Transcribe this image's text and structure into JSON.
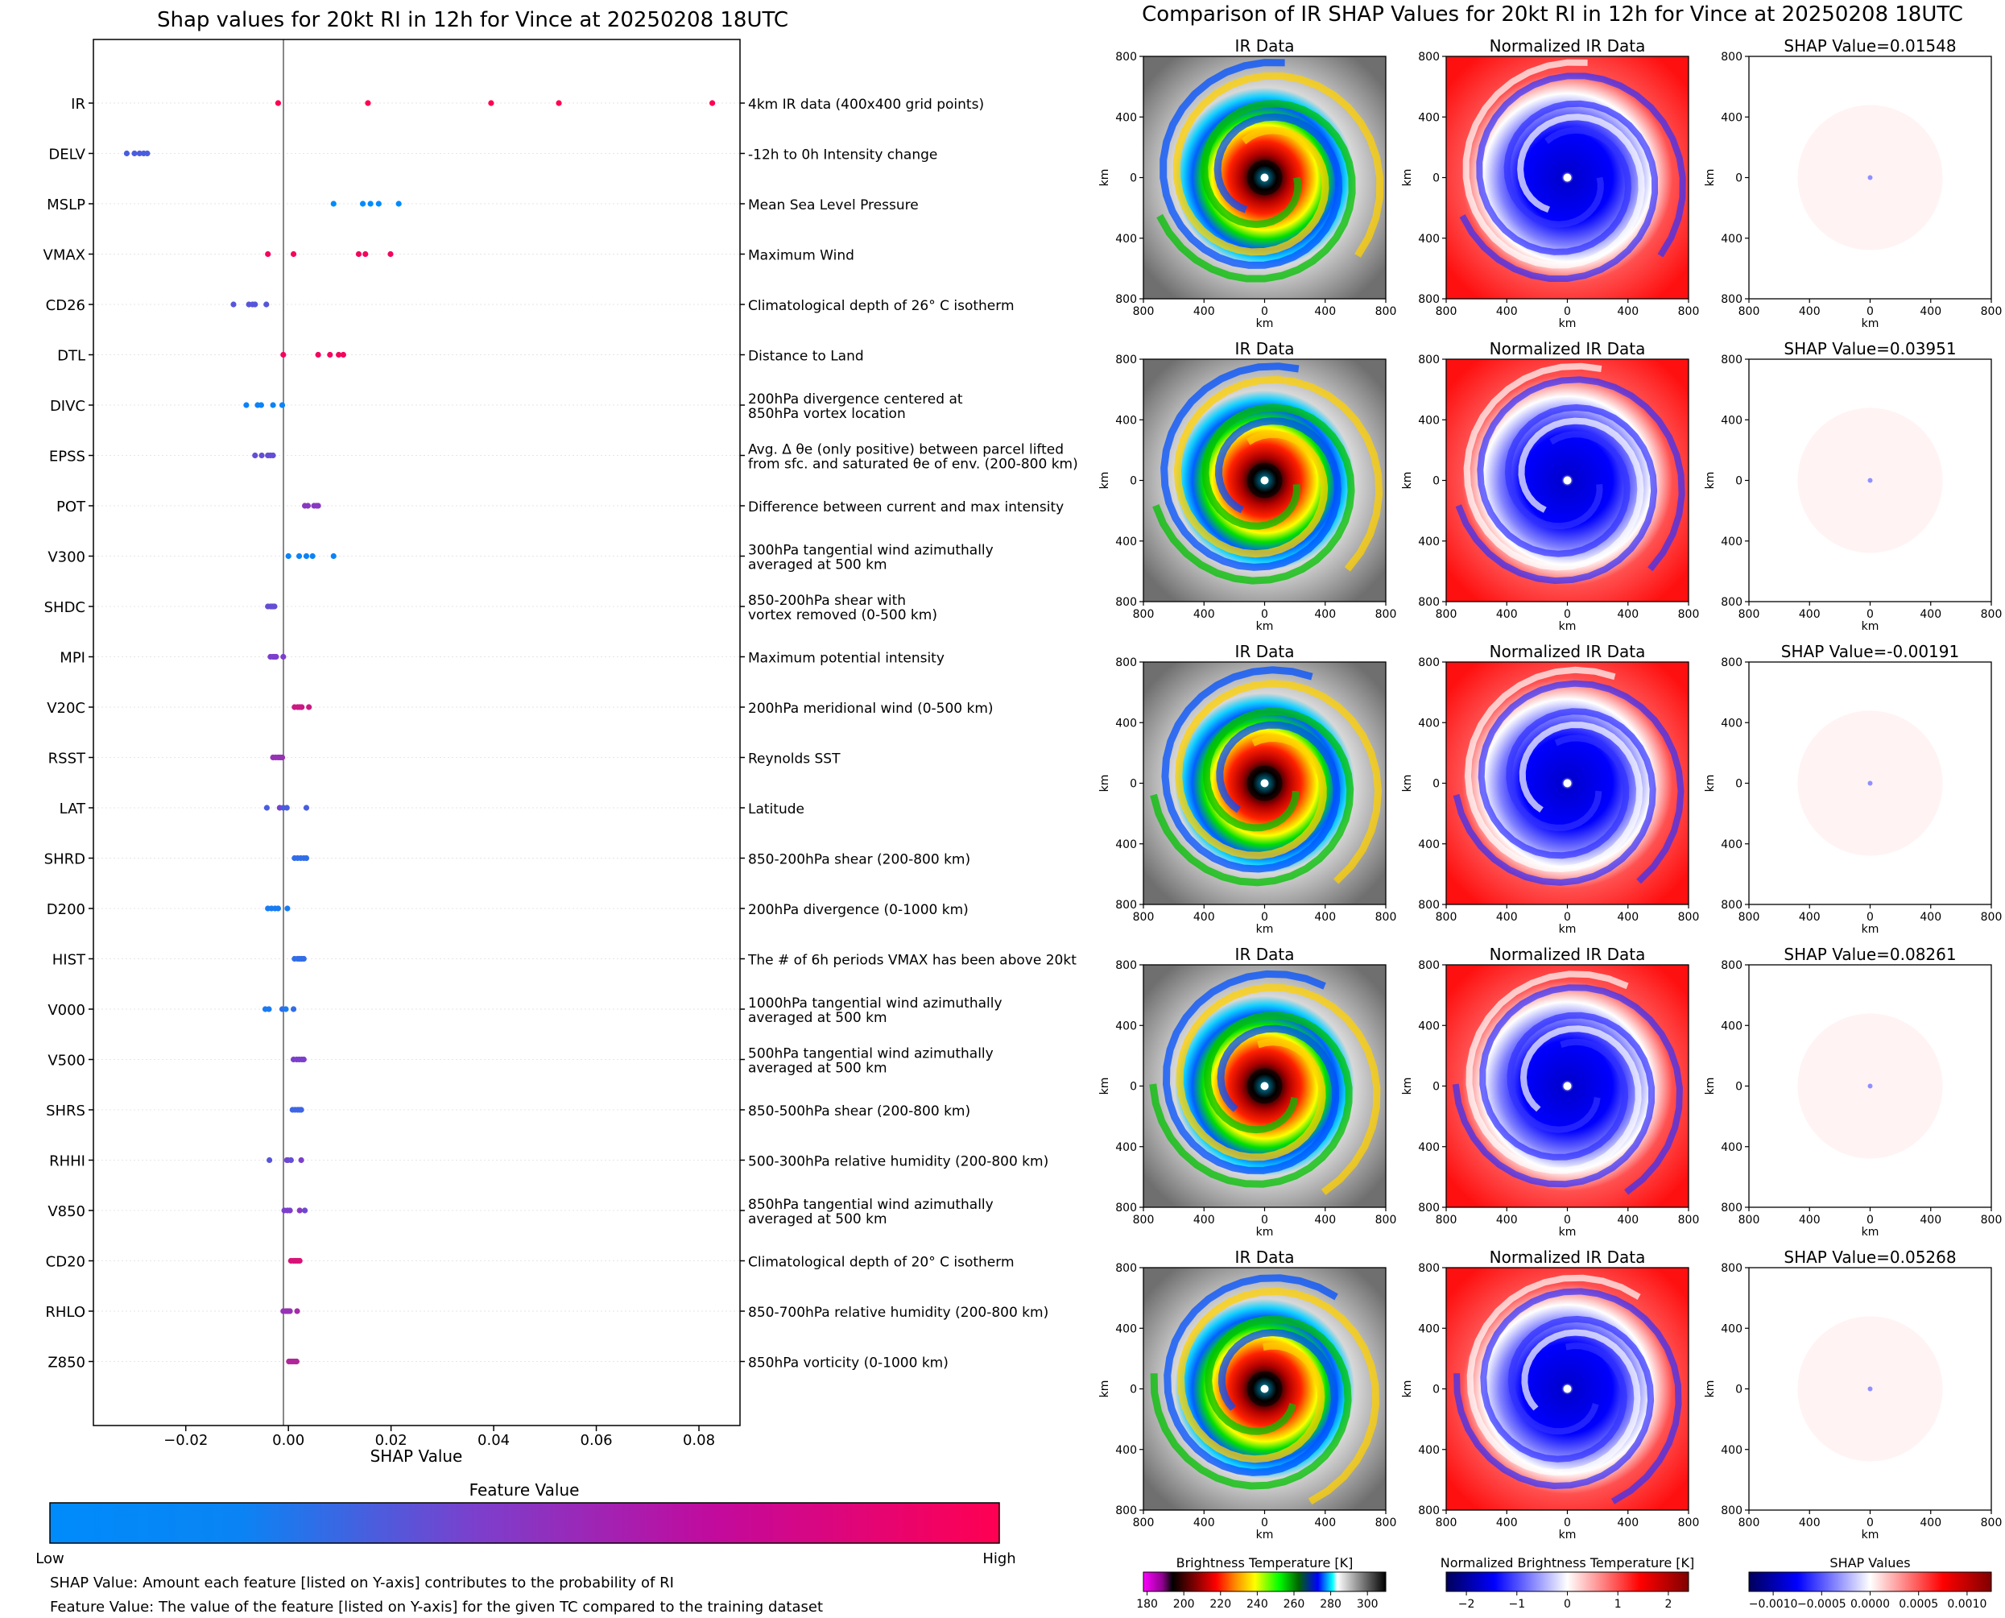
{
  "left_title": "Shap values for 20kt RI in 12h for Vince at 20250208 18UTC",
  "right_title": "Comparison of IR SHAP Values for 20kt RI in 12h for Vince at 20250208 18UTC",
  "colors": {
    "low": "#008bfb",
    "mid": "#7c3fcc",
    "high": "#ff0052"
  },
  "chart_data": [
    {
      "type": "scatter",
      "xlabel": "SHAP Value",
      "xlim": [
        -0.038,
        0.088
      ],
      "xticks": [
        -0.02,
        0.0,
        0.02,
        0.04,
        0.06,
        0.08
      ],
      "xtick_labels": [
        "−0.02",
        "0.00",
        "0.02",
        "0.04",
        "0.06",
        "0.08"
      ],
      "features": [
        {
          "name": "IR",
          "desc": [
            "4km IR data (400x400 grid points)"
          ],
          "points": [
            [
              -0.002,
              1.0
            ],
            [
              0.0155,
              1.0
            ],
            [
              0.0395,
              1.0
            ],
            [
              0.0527,
              1.0
            ],
            [
              0.0826,
              1.0
            ]
          ]
        },
        {
          "name": "DELV",
          "desc": [
            "-12h to 0h Intensity change"
          ],
          "points": [
            [
              -0.0315,
              0.3
            ],
            [
              -0.03,
              0.3
            ],
            [
              -0.029,
              0.3
            ],
            [
              -0.0282,
              0.3
            ],
            [
              -0.0275,
              0.3
            ]
          ]
        },
        {
          "name": "MSLP",
          "desc": [
            "Mean Sea Level Pressure"
          ],
          "points": [
            [
              0.0088,
              0.0
            ],
            [
              0.0145,
              0.0
            ],
            [
              0.016,
              0.0
            ],
            [
              0.0176,
              0.0
            ],
            [
              0.0215,
              0.0
            ]
          ]
        },
        {
          "name": "VMAX",
          "desc": [
            "Maximum Wind"
          ],
          "points": [
            [
              -0.004,
              0.95
            ],
            [
              0.001,
              0.95
            ],
            [
              0.0137,
              0.95
            ],
            [
              0.015,
              0.95
            ],
            [
              0.0199,
              0.95
            ]
          ]
        },
        {
          "name": "CD26",
          "desc": [
            "Climatological depth of 26° C isotherm"
          ],
          "points": [
            [
              -0.0107,
              0.35
            ],
            [
              -0.0077,
              0.35
            ],
            [
              -0.007,
              0.35
            ],
            [
              -0.0065,
              0.35
            ],
            [
              -0.0043,
              0.35
            ]
          ]
        },
        {
          "name": "DTL",
          "desc": [
            "Distance to Land"
          ],
          "points": [
            [
              -0.001,
              0.95
            ],
            [
              0.0058,
              0.95
            ],
            [
              0.0081,
              0.95
            ],
            [
              0.0098,
              0.95
            ],
            [
              0.0107,
              0.95
            ]
          ]
        },
        {
          "name": "DIVC",
          "desc": [
            "200hPa divergence centered at",
            "850hPa vortex location"
          ],
          "points": [
            [
              -0.0082,
              0.05
            ],
            [
              -0.006,
              0.05
            ],
            [
              -0.0053,
              0.05
            ],
            [
              -0.003,
              0.05
            ],
            [
              -0.0012,
              0.05
            ]
          ]
        },
        {
          "name": "EPSS",
          "desc": [
            "Avg. Δ θe (only positive) between parcel lifted",
            "from sfc. and saturated θe of env. (200-800 km)"
          ],
          "points": [
            [
              -0.0065,
              0.4
            ],
            [
              -0.0052,
              0.4
            ],
            [
              -0.004,
              0.4
            ],
            [
              -0.0035,
              0.4
            ],
            [
              -0.003,
              0.4
            ]
          ]
        },
        {
          "name": "POT",
          "desc": [
            "Difference between current and max intensity"
          ],
          "points": [
            [
              0.0032,
              0.55
            ],
            [
              0.0038,
              0.55
            ],
            [
              0.005,
              0.55
            ],
            [
              0.0055,
              0.55
            ],
            [
              0.0058,
              0.55
            ]
          ]
        },
        {
          "name": "V300",
          "desc": [
            "300hPa tangential wind azimuthally",
            "averaged at 500 km"
          ],
          "points": [
            [
              0.0,
              0.05
            ],
            [
              0.0021,
              0.05
            ],
            [
              0.0035,
              0.05
            ],
            [
              0.0047,
              0.05
            ],
            [
              0.0088,
              0.05
            ]
          ]
        },
        {
          "name": "SHDC",
          "desc": [
            "850-200hPa shear with",
            "vortex removed (0-500 km)"
          ],
          "points": [
            [
              -0.004,
              0.4
            ],
            [
              -0.0035,
              0.4
            ],
            [
              -0.0032,
              0.4
            ],
            [
              -0.003,
              0.4
            ],
            [
              -0.0027,
              0.4
            ]
          ]
        },
        {
          "name": "MPI",
          "desc": [
            "Maximum potential intensity"
          ],
          "points": [
            [
              -0.0035,
              0.5
            ],
            [
              -0.003,
              0.5
            ],
            [
              -0.0027,
              0.5
            ],
            [
              -0.0024,
              0.5
            ],
            [
              -0.001,
              0.5
            ]
          ]
        },
        {
          "name": "V20C",
          "desc": [
            "200hPa meridional wind (0-500 km)"
          ],
          "points": [
            [
              0.0012,
              0.8
            ],
            [
              0.0018,
              0.8
            ],
            [
              0.0022,
              0.8
            ],
            [
              0.0026,
              0.8
            ],
            [
              0.004,
              0.8
            ]
          ]
        },
        {
          "name": "RSST",
          "desc": [
            "Reynolds SST"
          ],
          "points": [
            [
              -0.003,
              0.6
            ],
            [
              -0.0025,
              0.6
            ],
            [
              -0.002,
              0.6
            ],
            [
              -0.0016,
              0.6
            ],
            [
              -0.0012,
              0.6
            ]
          ]
        },
        {
          "name": "LAT",
          "desc": [
            "Latitude"
          ],
          "points": [
            [
              -0.0042,
              0.3
            ],
            [
              -0.0017,
              0.5
            ],
            [
              -0.0003,
              0.3
            ],
            [
              0.0035,
              0.3
            ],
            [
              -0.001,
              0.3
            ]
          ]
        },
        {
          "name": "SHRD",
          "desc": [
            "850-200hPa shear (200-800 km)"
          ],
          "points": [
            [
              0.0012,
              0.2
            ],
            [
              0.0018,
              0.2
            ],
            [
              0.0024,
              0.2
            ],
            [
              0.003,
              0.2
            ],
            [
              0.0035,
              0.2
            ]
          ]
        },
        {
          "name": "D200",
          "desc": [
            "200hPa divergence (0-1000 km)"
          ],
          "points": [
            [
              -0.004,
              0.1
            ],
            [
              -0.0033,
              0.1
            ],
            [
              -0.0026,
              0.1
            ],
            [
              -0.002,
              0.1
            ],
            [
              -0.0002,
              0.1
            ]
          ]
        },
        {
          "name": "HIST",
          "desc": [
            "The # of 6h periods VMAX has been above 20kt"
          ],
          "points": [
            [
              0.0012,
              0.2
            ],
            [
              0.0018,
              0.2
            ],
            [
              0.0022,
              0.2
            ],
            [
              0.0026,
              0.2
            ],
            [
              0.003,
              0.2
            ]
          ]
        },
        {
          "name": "V000",
          "desc": [
            "1000hPa tangential wind azimuthally",
            "averaged at 500 km"
          ],
          "points": [
            [
              -0.0045,
              0.1
            ],
            [
              -0.0038,
              0.1
            ],
            [
              -0.0012,
              0.2
            ],
            [
              -0.0005,
              0.1
            ],
            [
              0.001,
              0.2
            ]
          ]
        },
        {
          "name": "V500",
          "desc": [
            "500hPa tangential wind azimuthally",
            "averaged at 500 km"
          ],
          "points": [
            [
              0.001,
              0.5
            ],
            [
              0.0016,
              0.5
            ],
            [
              0.0021,
              0.5
            ],
            [
              0.0026,
              0.5
            ],
            [
              0.003,
              0.5
            ]
          ]
        },
        {
          "name": "SHRS",
          "desc": [
            "850-500hPa shear (200-800 km)"
          ],
          "points": [
            [
              0.0008,
              0.25
            ],
            [
              0.0013,
              0.25
            ],
            [
              0.0018,
              0.25
            ],
            [
              0.0022,
              0.25
            ],
            [
              0.0025,
              0.25
            ]
          ]
        },
        {
          "name": "RHHI",
          "desc": [
            "500-300hPa relative humidity (200-800 km)"
          ],
          "points": [
            [
              -0.0037,
              0.35
            ],
            [
              -0.0003,
              0.45
            ],
            [
              -0.0001,
              0.45
            ],
            [
              0.0025,
              0.5
            ],
            [
              0.0005,
              0.4
            ]
          ]
        },
        {
          "name": "V850",
          "desc": [
            "850hPa tangential wind azimuthally",
            "averaged at 500 km"
          ],
          "points": [
            [
              -0.0008,
              0.5
            ],
            [
              -0.0002,
              0.5
            ],
            [
              0.0003,
              0.5
            ],
            [
              0.0022,
              0.55
            ],
            [
              0.0032,
              0.45
            ]
          ]
        },
        {
          "name": "CD20",
          "desc": [
            "Climatological depth of 20° C isotherm"
          ],
          "points": [
            [
              0.0005,
              0.85
            ],
            [
              0.001,
              0.85
            ],
            [
              0.0014,
              0.85
            ],
            [
              0.0018,
              0.85
            ],
            [
              0.0022,
              0.85
            ]
          ]
        },
        {
          "name": "RHLO",
          "desc": [
            "850-700hPa relative humidity (200-800 km)"
          ],
          "points": [
            [
              -0.001,
              0.6
            ],
            [
              -0.0005,
              0.6
            ],
            [
              -0.0001,
              0.6
            ],
            [
              0.0003,
              0.6
            ],
            [
              0.0017,
              0.65
            ]
          ]
        },
        {
          "name": "Z850",
          "desc": [
            "850hPa vorticity (0-1000 km)"
          ],
          "points": [
            [
              0.0001,
              0.7
            ],
            [
              0.0005,
              0.7
            ],
            [
              0.0009,
              0.7
            ],
            [
              0.0013,
              0.7
            ],
            [
              0.0016,
              0.7
            ]
          ]
        }
      ]
    },
    {
      "type": "heatmap",
      "panel_titles": [
        "IR Data",
        "Normalized IR Data"
      ],
      "shap_titles": [
        "SHAP Value=0.01548",
        "SHAP Value=0.03951",
        "SHAP Value=-0.00191",
        "SHAP Value=0.08261",
        "SHAP Value=0.05268"
      ],
      "axis_label": "km",
      "tick_labels": [
        "800",
        "400",
        "0",
        "400",
        "800"
      ],
      "colorbars": [
        {
          "label": "Brightness Temperature [K]",
          "ticks": [
            "180",
            "200",
            "220",
            "240",
            "260",
            "280",
            "300"
          ],
          "range": [
            178,
            310
          ]
        },
        {
          "label": "Normalized Brightness Temperature [K]",
          "ticks": [
            "−2",
            "−1",
            "0",
            "1",
            "2"
          ],
          "range": [
            -2.4,
            2.4
          ]
        },
        {
          "label": "SHAP Values",
          "ticks": [
            "−0.0010",
            "−0.0005",
            "0.0000",
            "0.0005",
            "0.0010"
          ],
          "range": [
            -0.00125,
            0.00125
          ]
        }
      ]
    }
  ],
  "legend": {
    "title": "Feature Value",
    "low": "Low",
    "high": "High"
  },
  "footnotes": [
    "SHAP Value: Amount each feature [listed on Y-axis] contributes to the probability of RI",
    "Feature Value: The value of the feature [listed on Y-axis] for the given TC compared to the training dataset"
  ]
}
